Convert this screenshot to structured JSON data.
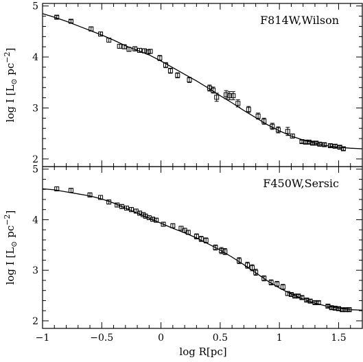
{
  "chart_data": [
    {
      "type": "scatter",
      "label": "F814W,Wilson",
      "xlabel": "log R[pc]",
      "ylabel_main": "log I [L",
      "ylabel_sub": "⊙",
      "ylabel_tail": " pc",
      "ylabel_sup": "−2",
      "ylabel_close": "]",
      "xlim": [
        -1,
        1.7
      ],
      "ylim": [
        1.85,
        5.05
      ],
      "xticks": [
        -1,
        -0.5,
        0,
        0.5,
        1,
        1.5
      ],
      "yticks": [
        2,
        3,
        4,
        5
      ],
      "points": [
        {
          "x": -0.88,
          "y": 4.78,
          "err": 0.03
        },
        {
          "x": -0.76,
          "y": 4.7,
          "err": 0.03
        },
        {
          "x": -0.59,
          "y": 4.55,
          "err": 0.04
        },
        {
          "x": -0.51,
          "y": 4.45,
          "err": 0.04
        },
        {
          "x": -0.44,
          "y": 4.33,
          "err": 0.04
        },
        {
          "x": -0.35,
          "y": 4.21,
          "err": 0.04
        },
        {
          "x": -0.31,
          "y": 4.2,
          "err": 0.04
        },
        {
          "x": -0.27,
          "y": 4.15,
          "err": 0.04
        },
        {
          "x": -0.22,
          "y": 4.16,
          "err": 0.04
        },
        {
          "x": -0.18,
          "y": 4.13,
          "err": 0.04
        },
        {
          "x": -0.14,
          "y": 4.12,
          "err": 0.04
        },
        {
          "x": -0.11,
          "y": 4.1,
          "err": 0.04
        },
        {
          "x": -0.09,
          "y": 4.11,
          "err": 0.04
        },
        {
          "x": -0.01,
          "y": 3.98,
          "err": 0.05
        },
        {
          "x": 0.04,
          "y": 3.84,
          "err": 0.05
        },
        {
          "x": 0.08,
          "y": 3.73,
          "err": 0.05
        },
        {
          "x": 0.14,
          "y": 3.64,
          "err": 0.05
        },
        {
          "x": 0.24,
          "y": 3.55,
          "err": 0.05
        },
        {
          "x": 0.41,
          "y": 3.39,
          "err": 0.06
        },
        {
          "x": 0.44,
          "y": 3.35,
          "err": 0.06
        },
        {
          "x": 0.47,
          "y": 3.21,
          "err": 0.08
        },
        {
          "x": 0.55,
          "y": 3.26,
          "err": 0.08
        },
        {
          "x": 0.58,
          "y": 3.24,
          "err": 0.08
        },
        {
          "x": 0.61,
          "y": 3.24,
          "err": 0.08
        },
        {
          "x": 0.65,
          "y": 3.09,
          "err": 0.07
        },
        {
          "x": 0.74,
          "y": 2.97,
          "err": 0.06
        },
        {
          "x": 0.82,
          "y": 2.84,
          "err": 0.06
        },
        {
          "x": 0.87,
          "y": 2.74,
          "err": 0.06
        },
        {
          "x": 0.94,
          "y": 2.64,
          "err": 0.06
        },
        {
          "x": 0.99,
          "y": 2.57,
          "err": 0.06
        },
        {
          "x": 1.07,
          "y": 2.54,
          "err": 0.08
        },
        {
          "x": 1.11,
          "y": 2.45,
          "err": 0.04
        },
        {
          "x": 1.19,
          "y": 2.34,
          "err": 0.03
        },
        {
          "x": 1.22,
          "y": 2.33,
          "err": 0.03
        },
        {
          "x": 1.25,
          "y": 2.33,
          "err": 0.03
        },
        {
          "x": 1.28,
          "y": 2.31,
          "err": 0.03
        },
        {
          "x": 1.31,
          "y": 2.31,
          "err": 0.03
        },
        {
          "x": 1.34,
          "y": 2.29,
          "err": 0.03
        },
        {
          "x": 1.38,
          "y": 2.28,
          "err": 0.03
        },
        {
          "x": 1.43,
          "y": 2.26,
          "err": 0.03
        },
        {
          "x": 1.47,
          "y": 2.25,
          "err": 0.03
        },
        {
          "x": 1.51,
          "y": 2.23,
          "err": 0.03
        },
        {
          "x": 1.54,
          "y": 2.2,
          "err": 0.03
        }
      ],
      "fit": [
        [
          -1,
          4.85
        ],
        [
          -0.9,
          4.78
        ],
        [
          -0.8,
          4.7
        ],
        [
          -0.7,
          4.61
        ],
        [
          -0.6,
          4.52
        ],
        [
          -0.5,
          4.43
        ],
        [
          -0.4,
          4.33
        ],
        [
          -0.3,
          4.22
        ],
        [
          -0.2,
          4.13
        ],
        [
          -0.1,
          4.04
        ],
        [
          0,
          3.92
        ],
        [
          0.1,
          3.79
        ],
        [
          0.2,
          3.66
        ],
        [
          0.3,
          3.53
        ],
        [
          0.4,
          3.39
        ],
        [
          0.5,
          3.24
        ],
        [
          0.6,
          3.1
        ],
        [
          0.7,
          2.95
        ],
        [
          0.8,
          2.81
        ],
        [
          0.9,
          2.67
        ],
        [
          1.0,
          2.55
        ],
        [
          1.1,
          2.45
        ],
        [
          1.2,
          2.37
        ],
        [
          1.3,
          2.31
        ],
        [
          1.4,
          2.26
        ],
        [
          1.5,
          2.23
        ],
        [
          1.6,
          2.21
        ],
        [
          1.7,
          2.2
        ]
      ]
    },
    {
      "type": "scatter",
      "label": "F450W,Sersic",
      "xlabel": "log R[pc]",
      "ylabel_main": "log I [L",
      "ylabel_sub": "⊙",
      "ylabel_tail": " pc",
      "ylabel_sup": "−2",
      "ylabel_close": "]",
      "xlim": [
        -1,
        1.7
      ],
      "ylim": [
        1.85,
        5.05
      ],
      "xticks": [
        -1,
        -0.5,
        0,
        0.5,
        1,
        1.5
      ],
      "yticks": [
        2,
        3,
        4,
        5
      ],
      "points": [
        {
          "x": -0.88,
          "y": 4.61,
          "err": 0.04
        },
        {
          "x": -0.76,
          "y": 4.58,
          "err": 0.04
        },
        {
          "x": -0.6,
          "y": 4.49,
          "err": 0.04
        },
        {
          "x": -0.51,
          "y": 4.44,
          "err": 0.04
        },
        {
          "x": -0.44,
          "y": 4.35,
          "err": 0.04
        },
        {
          "x": -0.37,
          "y": 4.29,
          "err": 0.04
        },
        {
          "x": -0.33,
          "y": 4.26,
          "err": 0.04
        },
        {
          "x": -0.29,
          "y": 4.23,
          "err": 0.04
        },
        {
          "x": -0.25,
          "y": 4.2,
          "err": 0.04
        },
        {
          "x": -0.21,
          "y": 4.17,
          "err": 0.04
        },
        {
          "x": -0.18,
          "y": 4.13,
          "err": 0.04
        },
        {
          "x": -0.15,
          "y": 4.1,
          "err": 0.04
        },
        {
          "x": -0.13,
          "y": 4.07,
          "err": 0.04
        },
        {
          "x": -0.1,
          "y": 4.04,
          "err": 0.04
        },
        {
          "x": -0.07,
          "y": 4.01,
          "err": 0.04
        },
        {
          "x": -0.04,
          "y": 3.99,
          "err": 0.04
        },
        {
          "x": 0.02,
          "y": 3.91,
          "err": 0.04
        },
        {
          "x": 0.1,
          "y": 3.88,
          "err": 0.04
        },
        {
          "x": 0.17,
          "y": 3.83,
          "err": 0.04
        },
        {
          "x": 0.2,
          "y": 3.79,
          "err": 0.04
        },
        {
          "x": 0.23,
          "y": 3.75,
          "err": 0.04
        },
        {
          "x": 0.3,
          "y": 3.67,
          "err": 0.05
        },
        {
          "x": 0.34,
          "y": 3.62,
          "err": 0.05
        },
        {
          "x": 0.38,
          "y": 3.59,
          "err": 0.05
        },
        {
          "x": 0.46,
          "y": 3.45,
          "err": 0.05
        },
        {
          "x": 0.51,
          "y": 3.39,
          "err": 0.06
        },
        {
          "x": 0.54,
          "y": 3.37,
          "err": 0.06
        },
        {
          "x": 0.66,
          "y": 3.19,
          "err": 0.06
        },
        {
          "x": 0.73,
          "y": 3.1,
          "err": 0.06
        },
        {
          "x": 0.77,
          "y": 3.05,
          "err": 0.06
        },
        {
          "x": 0.8,
          "y": 2.96,
          "err": 0.06
        },
        {
          "x": 0.87,
          "y": 2.84,
          "err": 0.05
        },
        {
          "x": 0.93,
          "y": 2.76,
          "err": 0.05
        },
        {
          "x": 0.98,
          "y": 2.73,
          "err": 0.05
        },
        {
          "x": 1.03,
          "y": 2.67,
          "err": 0.05
        },
        {
          "x": 1.07,
          "y": 2.54,
          "err": 0.04
        },
        {
          "x": 1.1,
          "y": 2.52,
          "err": 0.03
        },
        {
          "x": 1.13,
          "y": 2.49,
          "err": 0.03
        },
        {
          "x": 1.16,
          "y": 2.49,
          "err": 0.03
        },
        {
          "x": 1.19,
          "y": 2.46,
          "err": 0.03
        },
        {
          "x": 1.23,
          "y": 2.41,
          "err": 0.03
        },
        {
          "x": 1.26,
          "y": 2.39,
          "err": 0.03
        },
        {
          "x": 1.3,
          "y": 2.36,
          "err": 0.03
        },
        {
          "x": 1.33,
          "y": 2.36,
          "err": 0.03
        },
        {
          "x": 1.41,
          "y": 2.29,
          "err": 0.03
        },
        {
          "x": 1.44,
          "y": 2.26,
          "err": 0.03
        },
        {
          "x": 1.47,
          "y": 2.25,
          "err": 0.03
        },
        {
          "x": 1.5,
          "y": 2.24,
          "err": 0.03
        },
        {
          "x": 1.53,
          "y": 2.22,
          "err": 0.03
        },
        {
          "x": 1.56,
          "y": 2.22,
          "err": 0.03
        },
        {
          "x": 1.59,
          "y": 2.22,
          "err": 0.03
        }
      ],
      "fit": [
        [
          -1,
          4.61
        ],
        [
          -0.9,
          4.59
        ],
        [
          -0.8,
          4.55
        ],
        [
          -0.7,
          4.51
        ],
        [
          -0.6,
          4.47
        ],
        [
          -0.5,
          4.41
        ],
        [
          -0.4,
          4.33
        ],
        [
          -0.3,
          4.23
        ],
        [
          -0.2,
          4.13
        ],
        [
          -0.1,
          4.03
        ],
        [
          0,
          3.93
        ],
        [
          0.1,
          3.83
        ],
        [
          0.2,
          3.74
        ],
        [
          0.3,
          3.64
        ],
        [
          0.4,
          3.52
        ],
        [
          0.5,
          3.4
        ],
        [
          0.6,
          3.26
        ],
        [
          0.7,
          3.11
        ],
        [
          0.8,
          2.95
        ],
        [
          0.9,
          2.79
        ],
        [
          1.0,
          2.65
        ],
        [
          1.1,
          2.53
        ],
        [
          1.2,
          2.43
        ],
        [
          1.3,
          2.35
        ],
        [
          1.4,
          2.29
        ],
        [
          1.5,
          2.25
        ],
        [
          1.6,
          2.22
        ],
        [
          1.7,
          2.21
        ]
      ]
    }
  ]
}
